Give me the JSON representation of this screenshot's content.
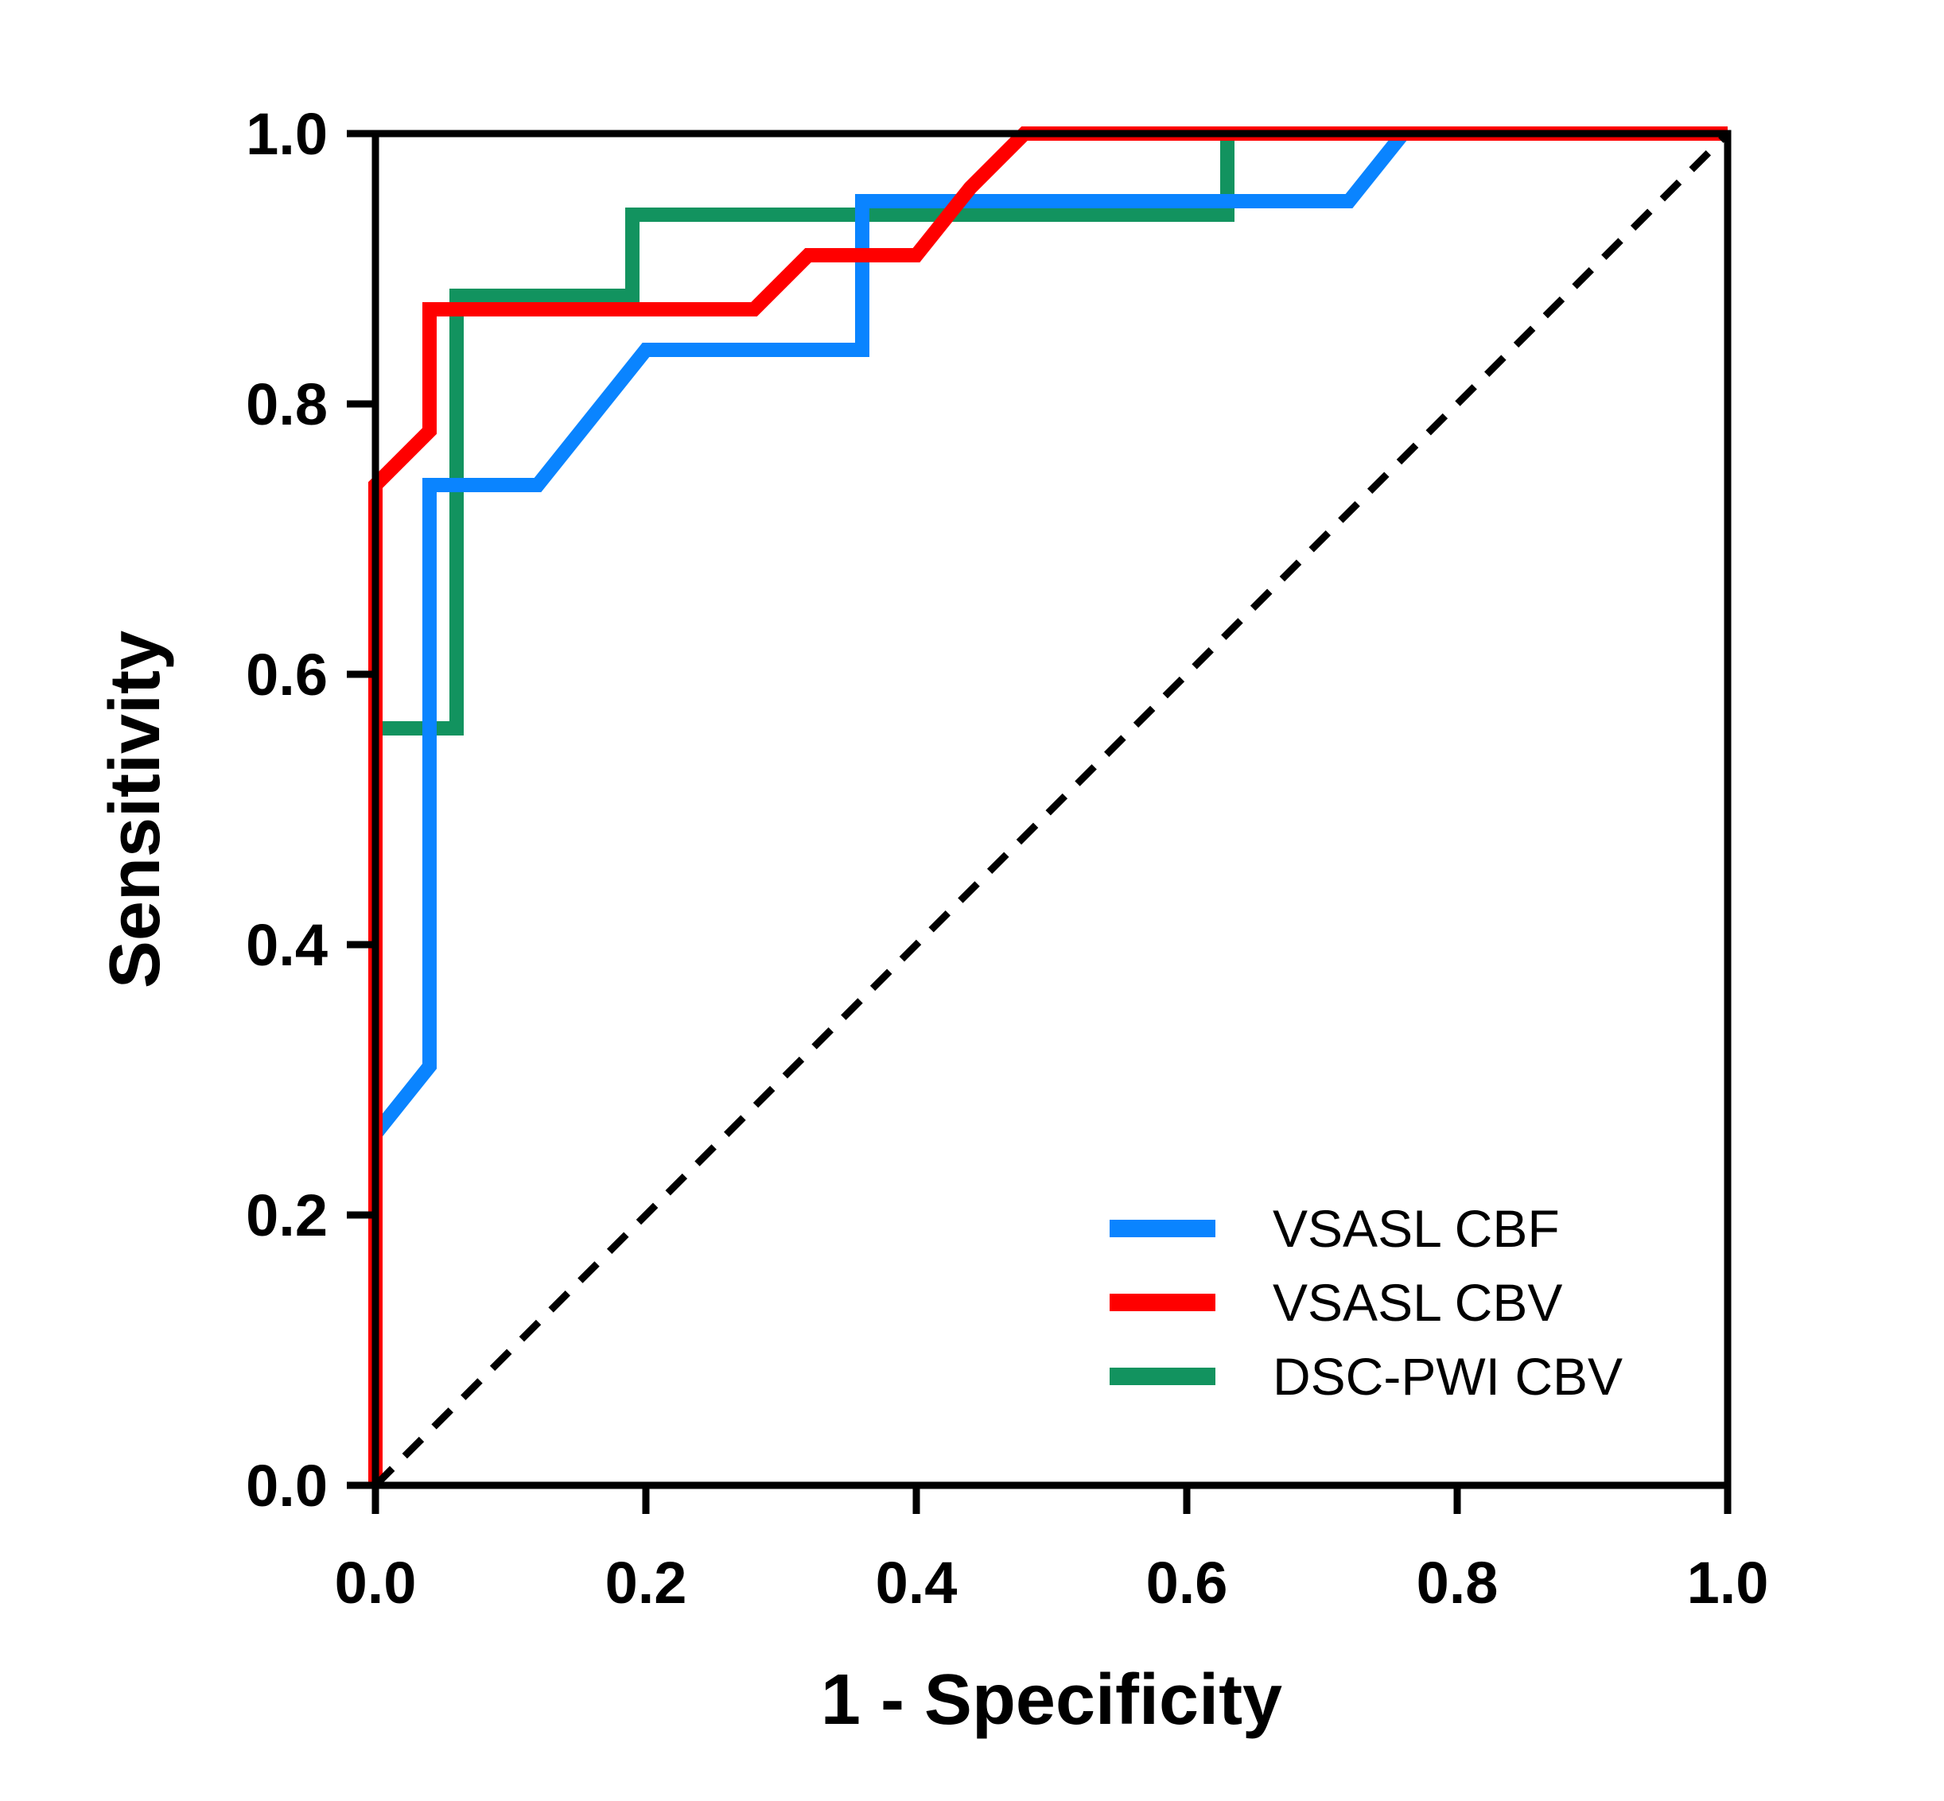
{
  "chart_data": {
    "type": "line",
    "xlabel": "1 - Specificity",
    "ylabel": "Sensitivity",
    "xlim": [
      0,
      1
    ],
    "ylim": [
      0,
      1
    ],
    "xticks": [
      "0.0",
      "0.2",
      "0.4",
      "0.6",
      "0.8",
      "1.0"
    ],
    "yticks": [
      "0.0",
      "0.2",
      "0.4",
      "0.6",
      "0.8",
      "1.0"
    ],
    "grid": false,
    "legend_position": "bottom-right",
    "reference_line": {
      "style": "dashed",
      "color": "#000000",
      "x": [
        0,
        1
      ],
      "y": [
        0,
        1
      ]
    },
    "series": [
      {
        "name": "VSASL CBF",
        "color": "#0a84ff",
        "x": [
          0,
          0,
          0.04,
          0.04,
          0.12,
          0.16,
          0.2,
          0.36,
          0.36,
          0.72,
          0.76,
          1.0
        ],
        "y": [
          0,
          0.26,
          0.31,
          0.74,
          0.74,
          0.79,
          0.84,
          0.84,
          0.95,
          0.95,
          1.0,
          1.0
        ]
      },
      {
        "name": "VSASL CBV",
        "color": "#ff0000",
        "x": [
          0,
          0,
          0.04,
          0.04,
          0.28,
          0.32,
          0.4,
          0.44,
          0.48,
          1.0
        ],
        "y": [
          0,
          0.74,
          0.78,
          0.87,
          0.87,
          0.91,
          0.91,
          0.96,
          1.0,
          1.0
        ]
      },
      {
        "name": "DSC-PWI CBV",
        "color": "#12935f",
        "x": [
          0,
          0,
          0.06,
          0.06,
          0.19,
          0.19,
          0.63,
          0.63,
          1.0
        ],
        "y": [
          0,
          0.56,
          0.56,
          0.88,
          0.88,
          0.94,
          0.94,
          1.0,
          1.0
        ]
      }
    ]
  }
}
